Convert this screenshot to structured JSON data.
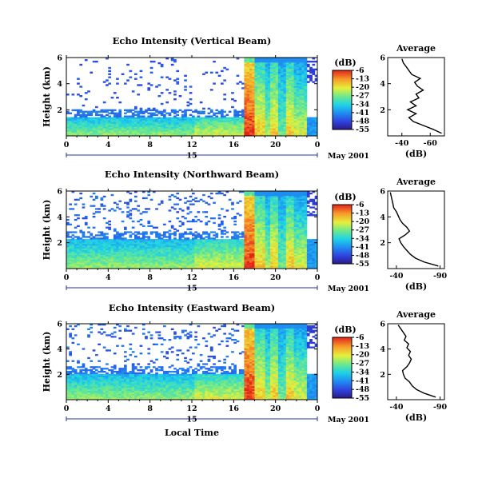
{
  "chart_data": [
    {
      "type": "heatmap",
      "title": "Echo Intensity (Vertical Beam)",
      "ylabel": "Height (km)",
      "xlabel": "",
      "x_ticks": [
        "0",
        "4",
        "8",
        "12",
        "16",
        "20",
        "0"
      ],
      "y_ticks": [
        "2",
        "4",
        "6"
      ],
      "xlim": [
        0,
        24
      ],
      "ylim": [
        0,
        6
      ],
      "date_bar_day": "15",
      "date_label": "May 2001",
      "colorbar": {
        "unit": "(dB)",
        "ticks": [
          "-6",
          "-13",
          "-20",
          "-27",
          "-34",
          "-41",
          "-48",
          "-55"
        ],
        "range": [
          -55,
          -6
        ]
      },
      "average_profile": {
        "title": "Average",
        "xlabel": "(dB)",
        "x_ticks": [
          "-40",
          "-60"
        ],
        "xlim": [
          -30,
          -70
        ],
        "y_ticks": [
          "2",
          "4",
          "6"
        ],
        "ylim": [
          0,
          6
        ],
        "height_km": [
          0.2,
          0.5,
          0.8,
          1.1,
          1.4,
          1.7,
          2.0,
          2.3,
          2.6,
          2.9,
          3.2,
          3.5,
          3.8,
          4.1,
          4.4,
          4.7,
          5.0,
          5.3,
          5.6,
          5.9
        ],
        "echo_db": [
          -68,
          -62,
          -55,
          -48,
          -45,
          -50,
          -44,
          -50,
          -46,
          -52,
          -50,
          -55,
          -51,
          -49,
          -53,
          -47,
          -45,
          -43,
          -41,
          -40
        ]
      }
    },
    {
      "type": "heatmap",
      "title": "Echo Intensity (Northward Beam)",
      "ylabel": "Height (km)",
      "xlabel": "",
      "x_ticks": [
        "0",
        "4",
        "8",
        "12",
        "16",
        "20",
        "0"
      ],
      "y_ticks": [
        "2",
        "4",
        "6"
      ],
      "xlim": [
        0,
        24
      ],
      "ylim": [
        0,
        6
      ],
      "date_bar_day": "15",
      "date_label": "May 2001",
      "colorbar": {
        "unit": "(dB)",
        "ticks": [
          "-6",
          "-13",
          "-20",
          "-27",
          "-34",
          "-41",
          "-48",
          "-55"
        ],
        "range": [
          -55,
          -6
        ]
      },
      "average_profile": {
        "title": "Average",
        "xlabel": "(dB)",
        "x_ticks": [
          "-40",
          "-90"
        ],
        "xlim": [
          -30,
          -95
        ],
        "y_ticks": [
          "2",
          "4",
          "6"
        ],
        "ylim": [
          0,
          6
        ],
        "height_km": [
          0.2,
          0.5,
          0.8,
          1.1,
          1.4,
          1.7,
          2.0,
          2.3,
          2.6,
          2.9,
          3.2,
          3.5,
          3.8,
          4.1,
          4.4,
          4.7,
          5.0,
          5.3,
          5.6,
          5.9
        ],
        "echo_db": [
          -88,
          -72,
          -62,
          -56,
          -52,
          -48,
          -45,
          -43,
          -50,
          -55,
          -52,
          -47,
          -44,
          -42,
          -40,
          -37,
          -36,
          -35,
          -34,
          -33
        ]
      }
    },
    {
      "type": "heatmap",
      "title": "Echo Intensity (Eastward Beam)",
      "ylabel": "Height (km)",
      "xlabel": "Local Time",
      "x_ticks": [
        "0",
        "4",
        "8",
        "12",
        "16",
        "20",
        "0"
      ],
      "y_ticks": [
        "2",
        "4",
        "6"
      ],
      "xlim": [
        0,
        24
      ],
      "ylim": [
        0,
        6
      ],
      "date_bar_day": "15",
      "date_label": "May 2001",
      "colorbar": {
        "unit": "(dB)",
        "ticks": [
          "-6",
          "-13",
          "-20",
          "-27",
          "-34",
          "-41",
          "-48",
          "-55"
        ],
        "range": [
          -55,
          -6
        ]
      },
      "average_profile": {
        "title": "Average",
        "xlabel": "(dB)",
        "x_ticks": [
          "-40",
          "-90"
        ],
        "xlim": [
          -30,
          -95
        ],
        "y_ticks": [
          "2",
          "4",
          "6"
        ],
        "ylim": [
          0,
          6
        ],
        "height_km": [
          0.2,
          0.5,
          0.8,
          1.1,
          1.4,
          1.7,
          2.0,
          2.3,
          2.6,
          2.9,
          3.2,
          3.5,
          3.8,
          4.1,
          4.4,
          4.7,
          5.0,
          5.3,
          5.6,
          5.9
        ],
        "echo_db": [
          -85,
          -72,
          -63,
          -58,
          -55,
          -50,
          -48,
          -47,
          -52,
          -55,
          -57,
          -54,
          -56,
          -52,
          -54,
          -49,
          -51,
          -48,
          -45,
          -42
        ]
      }
    }
  ]
}
